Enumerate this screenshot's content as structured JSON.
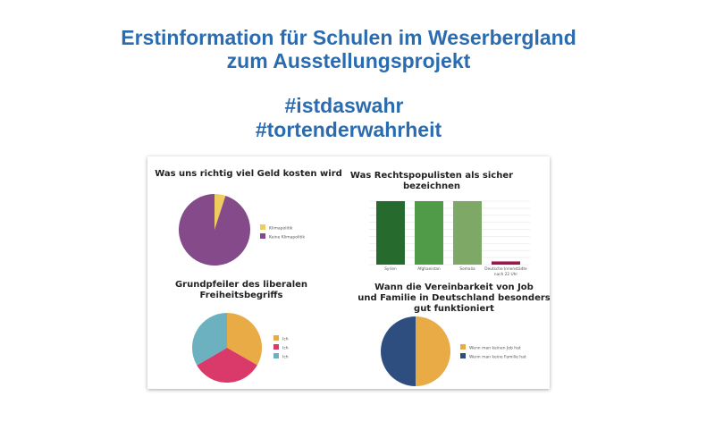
{
  "header": {
    "title_line1": "Erstinformation für Schulen im Weserbergland",
    "title_line2": "zum Ausstellungsprojekt",
    "hashtag1": "#istdaswahr",
    "hashtag2": "#tortenderwahrheit"
  },
  "chart_data": [
    {
      "type": "pie",
      "title": "Was uns richtig viel Geld kosten wird",
      "categories": [
        "Klimapolitik",
        "Keine Klimapolitik"
      ],
      "values": [
        5,
        95
      ],
      "colors": [
        "#f0cc5e",
        "#844a8a"
      ],
      "legend": "right"
    },
    {
      "type": "bar",
      "title_lines": [
        "Was Rechtspopulisten als sicher",
        "bezeichnen"
      ],
      "categories": [
        "Syrien",
        "Afghanistan",
        "Somalia",
        "Deutsche Innenstädte nach 22 Uhr"
      ],
      "category_lines": [
        [
          "Syrien"
        ],
        [
          "Afghanistan"
        ],
        [
          "Somalia"
        ],
        [
          "Deutsche Innenstädte",
          "nach 22 Uhr"
        ]
      ],
      "values": [
        100,
        100,
        100,
        5
      ],
      "colors": [
        "#276a2e",
        "#4f9b48",
        "#7ea865",
        "#a3134f"
      ],
      "ylim": [
        0,
        100
      ],
      "grid": true
    },
    {
      "type": "pie",
      "title_lines": [
        "Grundpfeiler des liberalen",
        "Freiheitsbegriffs"
      ],
      "categories": [
        "Ich",
        "Ich",
        "Ich"
      ],
      "values": [
        33.3,
        33.3,
        33.4
      ],
      "colors": [
        "#e9ab45",
        "#d93a6a",
        "#6bb1c0"
      ],
      "legend": "right"
    },
    {
      "type": "pie",
      "title_lines": [
        "Wann die Vereinbarkeit von Job",
        "und Familie in Deutschland besonders",
        "gut funktioniert"
      ],
      "categories": [
        "Wenn man keinen Job hat",
        "Wenn man keine Familie hat"
      ],
      "values": [
        50,
        50
      ],
      "colors": [
        "#e9ab45",
        "#2f4e80"
      ],
      "legend": "right"
    }
  ]
}
